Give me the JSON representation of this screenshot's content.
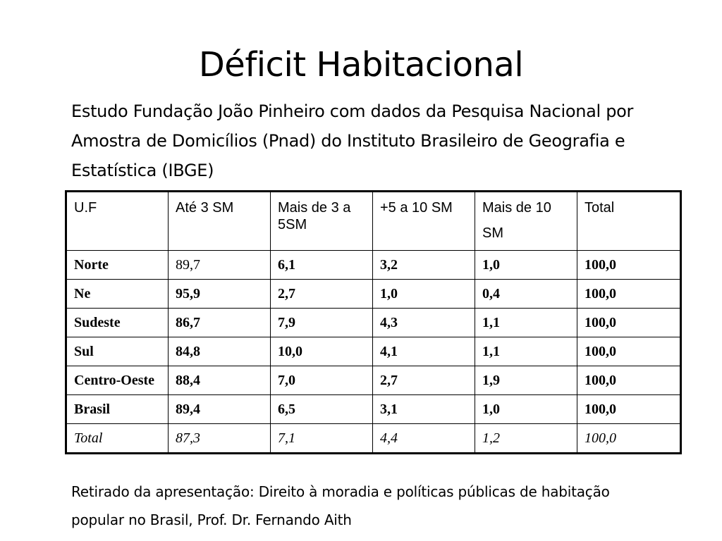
{
  "slide": {
    "title": "Déficit Habitacional",
    "subtitle": "Estudo Fundação João Pinheiro com dados da Pesquisa Nacional por Amostra de Domicílios (Pnad) do Instituto Brasileiro de Geografia e Estatística (IBGE)",
    "footer": "Retirado da apresentação: Direito à moradia e políticas públicas de habitação popular no Brasil, Prof. Dr. Fernando Aith"
  },
  "table": {
    "headers": [
      "U.F",
      "Até 3 SM",
      "Mais de 3 a 5SM",
      "+5 a 10 SM",
      "Mais de 10 SM",
      "Total"
    ],
    "rows": [
      [
        "Norte",
        "89,7",
        "6,1",
        "3,2",
        "1,0",
        "100,0"
      ],
      [
        "Ne",
        "95,9",
        "2,7",
        "1,0",
        "0,4",
        "100,0"
      ],
      [
        "Sudeste",
        "86,7",
        "7,9",
        "4,3",
        "1,1",
        "100,0"
      ],
      [
        "Sul",
        "84,8",
        "10,0",
        "4,1",
        "1,1",
        "100,0"
      ],
      [
        "Centro-Oeste",
        "88,4",
        "7,0",
        "2,7",
        "1,9",
        "100,0"
      ],
      [
        "Brasil",
        "89,4",
        "6,5",
        "3,1",
        "1,0",
        "100,0"
      ],
      [
        "Total",
        "87,3",
        "7,1",
        "4,4",
        "1,2",
        "100,0"
      ]
    ]
  }
}
